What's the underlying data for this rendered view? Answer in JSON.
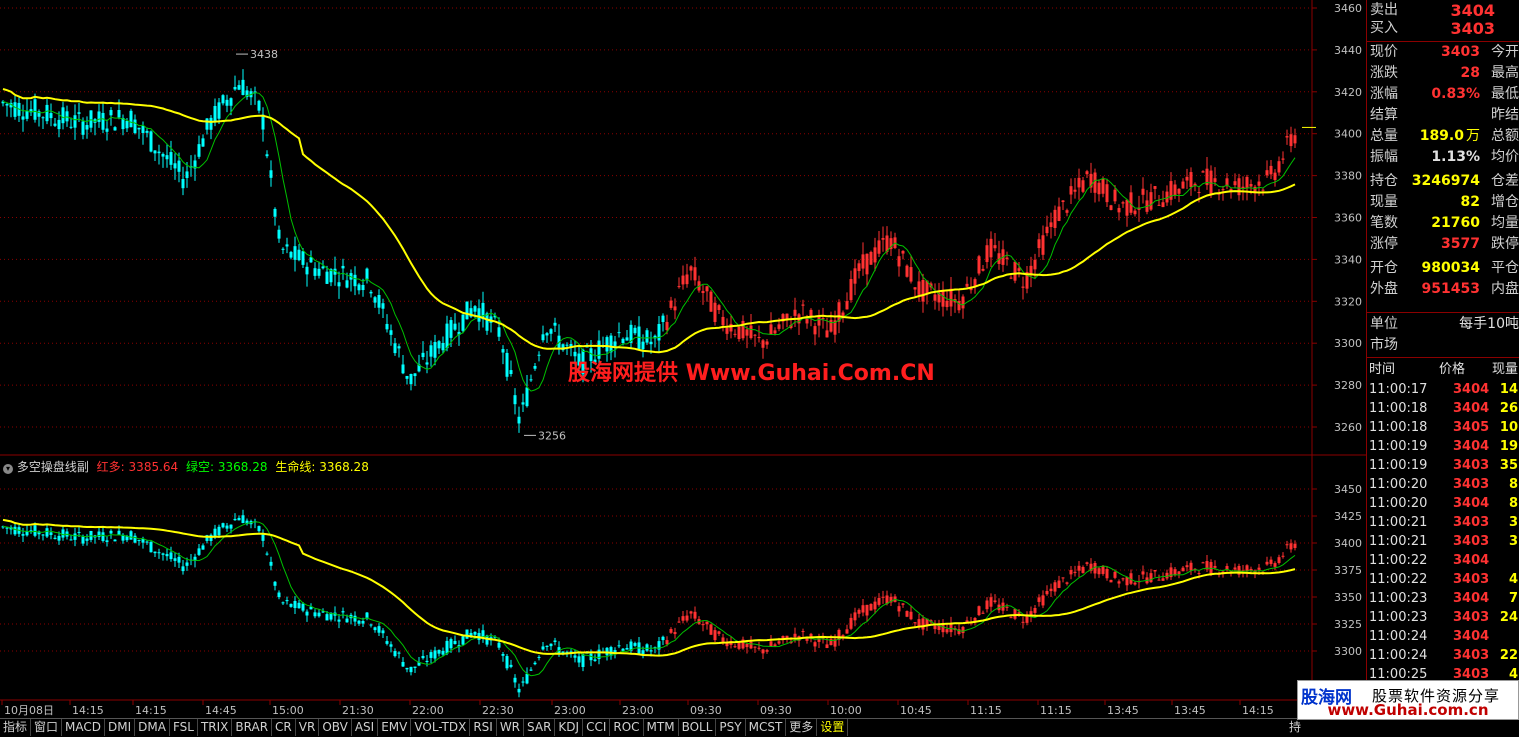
{
  "watermark": "股海网提供 Www.Guhai.Com.CN",
  "colors": {
    "bull": "#ff3232",
    "bear": "#00ffff",
    "ma_yellow": "#ffff00",
    "ma_green": "#00c000",
    "grid": "#8b0000"
  },
  "main_chart": {
    "y_ticks": [
      "3460",
      "3440",
      "3420",
      "3400",
      "3380",
      "3360",
      "3340",
      "3320",
      "3300",
      "3280",
      "3260"
    ],
    "high_marker": "3438",
    "low_marker": "3256"
  },
  "indicator": {
    "name": "多空操盘线副",
    "red_label": "红多:",
    "red_value": "3385.64",
    "green_label": "绿空:",
    "green_value": "3368.28",
    "life_label": "生命线:",
    "life_value": "3368.28",
    "y_ticks": [
      "3450",
      "3425",
      "3400",
      "3375",
      "3350",
      "3325",
      "3300"
    ]
  },
  "x_axis": [
    "10月08日",
    "14:15",
    "14:15",
    "14:45",
    "15:00",
    "21:30",
    "22:00",
    "22:30",
    "23:00",
    "23:00",
    "09:30",
    "09:30",
    "10:00",
    "10:45",
    "11:15",
    "11:15",
    "13:45",
    "13:45",
    "14:15"
  ],
  "quote": {
    "sell": {
      "label": "卖出",
      "value": "3404"
    },
    "buy": {
      "label": "买入",
      "value": "3403"
    },
    "rows": [
      {
        "label": "现价",
        "value": "3403",
        "color": "#ff3232",
        "label2": "今开"
      },
      {
        "label": "涨跌",
        "value": "28",
        "color": "#ff3232",
        "label2": "最高"
      },
      {
        "label": "涨幅",
        "value": "0.83%",
        "color": "#ff3232",
        "label2": "最低"
      },
      {
        "label": "结算",
        "value": "",
        "color": "#ff3232",
        "label2": "昨结"
      },
      {
        "label": "总量",
        "value": "189.0",
        "color": "#ffff00",
        "unit": "万",
        "label2": "总额"
      },
      {
        "label": "振幅",
        "value": "1.13%",
        "color": "#e0e0e0",
        "label2": "均价"
      },
      {
        "label": "持仓",
        "value": "3246974",
        "color": "#ffff00",
        "label2": "仓差"
      },
      {
        "label": "现量",
        "value": "82",
        "color": "#ffff00",
        "label2": "增仓"
      },
      {
        "label": "笔数",
        "value": "21760",
        "color": "#ffff00",
        "label2": "均量"
      },
      {
        "label": "涨停",
        "value": "3577",
        "color": "#ff3232",
        "label2": "跌停"
      },
      {
        "label": "开仓",
        "value": "980034",
        "color": "#ffff00",
        "label2": "平仓"
      },
      {
        "label": "外盘",
        "value": "951453",
        "color": "#ff3232",
        "label2": "内盘"
      }
    ],
    "unit_label": "单位",
    "unit_value": "每手10吨",
    "market_label": "市场"
  },
  "ticks": {
    "headers": [
      "时间",
      "价格",
      "现量"
    ],
    "rows": [
      {
        "time": "11:00:17",
        "price": "3404",
        "vol": "14"
      },
      {
        "time": "11:00:18",
        "price": "3404",
        "vol": "26"
      },
      {
        "time": "11:00:18",
        "price": "3405",
        "vol": "10"
      },
      {
        "time": "11:00:19",
        "price": "3404",
        "vol": "19"
      },
      {
        "time": "11:00:19",
        "price": "3403",
        "vol": "35"
      },
      {
        "time": "11:00:20",
        "price": "3403",
        "vol": "8"
      },
      {
        "time": "11:00:20",
        "price": "3404",
        "vol": "8"
      },
      {
        "time": "11:00:21",
        "price": "3403",
        "vol": "3"
      },
      {
        "time": "11:00:21",
        "price": "3403",
        "vol": "3"
      },
      {
        "time": "11:00:22",
        "price": "3404",
        "vol": ""
      },
      {
        "time": "11:00:22",
        "price": "3403",
        "vol": "4"
      },
      {
        "time": "11:00:23",
        "price": "3404",
        "vol": "7"
      },
      {
        "time": "11:00:23",
        "price": "3403",
        "vol": "24"
      },
      {
        "time": "11:00:24",
        "price": "3404",
        "vol": ""
      },
      {
        "time": "11:00:24",
        "price": "3403",
        "vol": "22"
      },
      {
        "time": "11:00:25",
        "price": "3403",
        "vol": "4"
      }
    ]
  },
  "toolbar": [
    "指标",
    "窗口",
    "MACD",
    "DMI",
    "DMA",
    "FSL",
    "TRIX",
    "BRAR",
    "CR",
    "VR",
    "OBV",
    "ASI",
    "EMV",
    "VOL-TDX",
    "RSI",
    "WR",
    "SAR",
    "KDJ",
    "CCI",
    "ROC",
    "MTM",
    "BOLL",
    "PSY",
    "MCST",
    "更多",
    "设置"
  ],
  "logo": {
    "line1a": "股海网",
    "line1b": "股票软件资源分享",
    "line2": "www.Guhai.com.cn"
  },
  "bottom_right_label": "持"
}
